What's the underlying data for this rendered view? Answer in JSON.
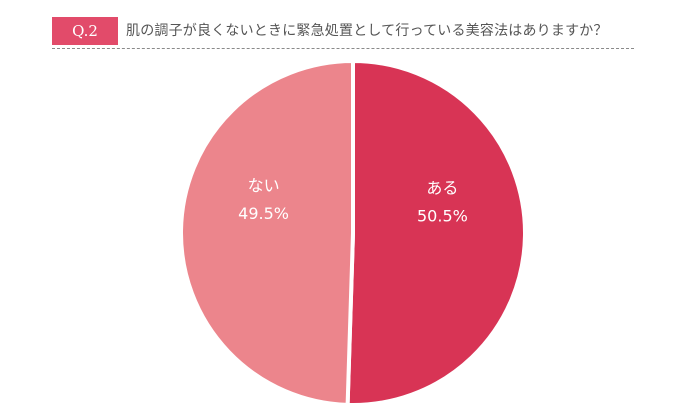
{
  "header": {
    "badge": "Q.2",
    "question": "肌の調子が良くないときに緊急処置として行っている美容法はありますか？"
  },
  "colors": {
    "badge": "#e24b6a",
    "slice_yes": "#d83455",
    "slice_no": "#ec858c"
  },
  "chart_data": {
    "type": "pie",
    "title": "",
    "slices": [
      {
        "label": "ある",
        "value": 50.5,
        "display": "50.5%",
        "color": "#d83455"
      },
      {
        "label": "ない",
        "value": 49.5,
        "display": "49.5%",
        "color": "#ec858c"
      }
    ],
    "start_angle": "12 o'clock",
    "direction": "clockwise",
    "legend": "none"
  }
}
